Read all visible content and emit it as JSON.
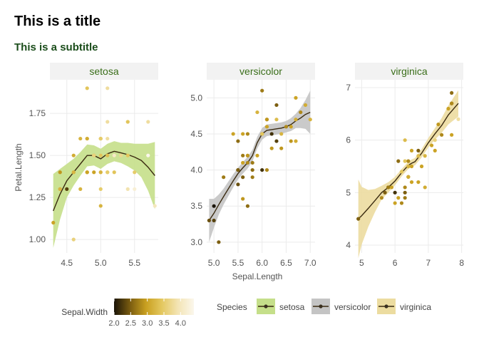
{
  "title": "This is a title",
  "subtitle": "This is a subtitle",
  "chart_data": {
    "type": "scatter",
    "xlabel": "Sepal.Length",
    "ylabel": "Petal.Length",
    "facet_strip_color": "#f2f2f2",
    "facet_text_color": "#3a6e1a",
    "facets": [
      {
        "name": "setosa",
        "xlim": [
          4.25,
          5.85
        ],
        "ylim": [
          0.92,
          1.95
        ],
        "xticks": [
          4.5,
          5.0,
          5.5
        ],
        "xtick_labels": [
          "4.5",
          "5.0",
          "5.5"
        ],
        "yticks": [
          1.0,
          1.25,
          1.5,
          1.75
        ],
        "ytick_labels": [
          "1.00",
          "1.25",
          "1.50",
          "1.75"
        ],
        "band_color": "#c5df8a",
        "points": [
          [
            4.3,
            1.1,
            3.0
          ],
          [
            4.4,
            1.4,
            2.9
          ],
          [
            4.4,
            1.3,
            3.0
          ],
          [
            4.4,
            1.3,
            3.2
          ],
          [
            4.5,
            1.3,
            2.3
          ],
          [
            4.6,
            1.4,
            3.4
          ],
          [
            4.6,
            1.5,
            3.1
          ],
          [
            4.6,
            1.0,
            3.6
          ],
          [
            4.6,
            1.4,
            3.2
          ],
          [
            4.7,
            1.3,
            3.2
          ],
          [
            4.7,
            1.6,
            3.2
          ],
          [
            4.8,
            1.6,
            3.4
          ],
          [
            4.8,
            1.4,
            3.0
          ],
          [
            4.8,
            1.6,
            3.1
          ],
          [
            4.8,
            1.9,
            3.4
          ],
          [
            4.8,
            1.4,
            3.0
          ],
          [
            4.9,
            1.4,
            3.0
          ],
          [
            4.9,
            1.5,
            3.1
          ],
          [
            4.9,
            1.5,
            3.6
          ],
          [
            5.0,
            1.4,
            3.6
          ],
          [
            5.0,
            1.5,
            3.4
          ],
          [
            5.0,
            1.6,
            3.0
          ],
          [
            5.0,
            1.6,
            3.4
          ],
          [
            5.0,
            1.4,
            3.2
          ],
          [
            5.0,
            1.6,
            3.5
          ],
          [
            5.0,
            1.3,
            3.5
          ],
          [
            5.0,
            1.2,
            3.2
          ],
          [
            5.1,
            1.4,
            3.5
          ],
          [
            5.1,
            1.5,
            3.7
          ],
          [
            5.1,
            1.4,
            3.5
          ],
          [
            5.1,
            1.7,
            3.8
          ],
          [
            5.1,
            1.5,
            3.3
          ],
          [
            5.1,
            1.9,
            3.8
          ],
          [
            5.1,
            1.6,
            3.8
          ],
          [
            5.2,
            1.5,
            3.5
          ],
          [
            5.2,
            1.4,
            3.4
          ],
          [
            5.2,
            1.5,
            4.1
          ],
          [
            5.3,
            1.5,
            3.7
          ],
          [
            5.4,
            1.7,
            3.9
          ],
          [
            5.4,
            1.5,
            3.7
          ],
          [
            5.4,
            1.7,
            3.4
          ],
          [
            5.4,
            1.3,
            3.9
          ],
          [
            5.4,
            1.5,
            3.4
          ],
          [
            5.5,
            1.4,
            3.5
          ],
          [
            5.5,
            1.3,
            4.2
          ],
          [
            5.7,
            1.5,
            4.4
          ],
          [
            5.7,
            1.7,
            3.8
          ],
          [
            5.8,
            1.2,
            4.0
          ]
        ],
        "smooth": [
          [
            4.3,
            1.17
          ],
          [
            4.4,
            1.27
          ],
          [
            4.5,
            1.35
          ],
          [
            4.6,
            1.4
          ],
          [
            4.7,
            1.45
          ],
          [
            4.8,
            1.5
          ],
          [
            4.9,
            1.5
          ],
          [
            5.0,
            1.48
          ],
          [
            5.1,
            1.51
          ],
          [
            5.2,
            1.525
          ],
          [
            5.3,
            1.515
          ],
          [
            5.4,
            1.505
          ],
          [
            5.5,
            1.49
          ],
          [
            5.6,
            1.47
          ],
          [
            5.7,
            1.43
          ],
          [
            5.8,
            1.38
          ]
        ],
        "band_halfwidth": [
          0.22,
          0.15,
          0.1,
          0.08,
          0.07,
          0.065,
          0.06,
          0.06,
          0.06,
          0.06,
          0.06,
          0.07,
          0.08,
          0.1,
          0.14,
          0.2
        ]
      },
      {
        "name": "versicolor",
        "xlim": [
          4.85,
          7.1
        ],
        "ylim": [
          2.85,
          5.25
        ],
        "xticks": [
          5.0,
          5.5,
          6.0,
          6.5,
          7.0
        ],
        "xtick_labels": [
          "5.0",
          "5.5",
          "6.0",
          "6.5",
          "7.0"
        ],
        "yticks": [
          3.0,
          3.5,
          4.0,
          4.5,
          5.0
        ],
        "ytick_labels": [
          "3.0",
          "3.5",
          "4.0",
          "4.5",
          "5.0"
        ],
        "band_color": "#c4c4c4",
        "points": [
          [
            4.9,
            3.3,
            2.4
          ],
          [
            5.0,
            3.5,
            2.0
          ],
          [
            5.0,
            3.3,
            2.3
          ],
          [
            5.1,
            3.0,
            2.5
          ],
          [
            5.2,
            3.9,
            2.7
          ],
          [
            5.4,
            4.5,
            3.0
          ],
          [
            5.5,
            4.0,
            2.3
          ],
          [
            5.5,
            3.8,
            2.4
          ],
          [
            5.5,
            4.4,
            2.6
          ],
          [
            5.5,
            4.0,
            2.5
          ],
          [
            5.6,
            3.6,
            2.9
          ],
          [
            5.6,
            4.5,
            3.0
          ],
          [
            5.6,
            4.1,
            3.0
          ],
          [
            5.6,
            3.9,
            2.5
          ],
          [
            5.6,
            4.2,
            2.7
          ],
          [
            5.7,
            4.5,
            2.8
          ],
          [
            5.7,
            3.5,
            2.6
          ],
          [
            5.7,
            4.2,
            3.0
          ],
          [
            5.7,
            4.2,
            2.9
          ],
          [
            5.7,
            4.1,
            2.8
          ],
          [
            5.8,
            4.1,
            2.7
          ],
          [
            5.8,
            4.0,
            2.6
          ],
          [
            5.8,
            3.9,
            2.7
          ],
          [
            5.9,
            4.8,
            3.2
          ],
          [
            5.9,
            4.2,
            3.0
          ],
          [
            6.0,
            4.0,
            2.2
          ],
          [
            6.0,
            5.1,
            2.7
          ],
          [
            6.0,
            4.5,
            2.9
          ],
          [
            6.0,
            4.5,
            3.4
          ],
          [
            6.1,
            4.0,
            2.8
          ],
          [
            6.1,
            4.7,
            2.8
          ],
          [
            6.1,
            4.7,
            2.9
          ],
          [
            6.1,
            4.6,
            3.0
          ],
          [
            6.2,
            4.5,
            2.2
          ],
          [
            6.2,
            4.3,
            2.9
          ],
          [
            6.3,
            4.9,
            2.5
          ],
          [
            6.3,
            4.7,
            3.3
          ],
          [
            6.3,
            4.4,
            2.3
          ],
          [
            6.4,
            4.5,
            3.2
          ],
          [
            6.4,
            4.3,
            2.9
          ],
          [
            6.5,
            4.6,
            2.8
          ],
          [
            6.6,
            4.6,
            3.0
          ],
          [
            6.6,
            4.4,
            2.9
          ],
          [
            6.7,
            4.4,
            3.1
          ],
          [
            6.7,
            5.0,
            3.0
          ],
          [
            6.7,
            4.7,
            3.1
          ],
          [
            6.8,
            4.8,
            2.8
          ],
          [
            6.9,
            4.9,
            3.1
          ],
          [
            7.0,
            4.7,
            3.2
          ]
        ],
        "smooth": [
          [
            4.9,
            3.3
          ],
          [
            5.0,
            3.4
          ],
          [
            5.1,
            3.52
          ],
          [
            5.2,
            3.63
          ],
          [
            5.3,
            3.74
          ],
          [
            5.4,
            3.85
          ],
          [
            5.5,
            3.95
          ],
          [
            5.6,
            4.03
          ],
          [
            5.7,
            4.1
          ],
          [
            5.8,
            4.2
          ],
          [
            5.9,
            4.38
          ],
          [
            6.0,
            4.5
          ],
          [
            6.1,
            4.55
          ],
          [
            6.2,
            4.56
          ],
          [
            6.3,
            4.57
          ],
          [
            6.4,
            4.58
          ],
          [
            6.5,
            4.6
          ],
          [
            6.6,
            4.63
          ],
          [
            6.7,
            4.68
          ],
          [
            6.8,
            4.72
          ],
          [
            6.9,
            4.77
          ],
          [
            7.0,
            4.8
          ]
        ],
        "band_halfwidth": [
          0.3,
          0.2,
          0.14,
          0.11,
          0.1,
          0.09,
          0.08,
          0.08,
          0.08,
          0.08,
          0.08,
          0.08,
          0.08,
          0.08,
          0.08,
          0.08,
          0.08,
          0.09,
          0.1,
          0.14,
          0.2,
          0.3
        ]
      },
      {
        "name": "virginica",
        "xlim": [
          4.8,
          8.05
        ],
        "ylim": [
          3.85,
          7.15
        ],
        "xticks": [
          5,
          6,
          7,
          8
        ],
        "xtick_labels": [
          "5",
          "6",
          "7",
          "8"
        ],
        "yticks": [
          4,
          5,
          6,
          7
        ],
        "ytick_labels": [
          "4",
          "5",
          "6",
          "7"
        ],
        "band_color": "#ecdca0",
        "points": [
          [
            4.9,
            4.5,
            2.5
          ],
          [
            5.6,
            4.9,
            2.8
          ],
          [
            5.7,
            5.0,
            2.5
          ],
          [
            5.8,
            5.1,
            2.7
          ],
          [
            5.8,
            5.1,
            2.8
          ],
          [
            5.8,
            5.1,
            2.7
          ],
          [
            5.9,
            5.1,
            3.0
          ],
          [
            6.0,
            5.0,
            2.2
          ],
          [
            6.0,
            4.8,
            3.0
          ],
          [
            6.1,
            5.6,
            2.6
          ],
          [
            6.1,
            4.9,
            3.0
          ],
          [
            6.2,
            4.8,
            2.8
          ],
          [
            6.2,
            5.4,
            3.4
          ],
          [
            6.3,
            6.0,
            3.3
          ],
          [
            6.3,
            5.1,
            2.8
          ],
          [
            6.3,
            5.0,
            2.5
          ],
          [
            6.3,
            5.6,
            3.4
          ],
          [
            6.3,
            4.9,
            2.7
          ],
          [
            6.4,
            5.3,
            2.7
          ],
          [
            6.4,
            5.6,
            2.8
          ],
          [
            6.4,
            5.5,
            3.2
          ],
          [
            6.4,
            5.3,
            3.1
          ],
          [
            6.5,
            5.8,
            3.0
          ],
          [
            6.5,
            5.5,
            3.0
          ],
          [
            6.5,
            5.2,
            3.0
          ],
          [
            6.7,
            5.8,
            2.5
          ],
          [
            6.7,
            5.7,
            3.3
          ],
          [
            6.7,
            5.2,
            3.0
          ],
          [
            6.8,
            5.5,
            3.0
          ],
          [
            6.9,
            5.7,
            3.2
          ],
          [
            6.9,
            5.1,
            3.1
          ],
          [
            7.1,
            5.9,
            3.0
          ],
          [
            7.2,
            6.0,
            3.6
          ],
          [
            7.2,
            5.8,
            3.0
          ],
          [
            7.3,
            6.3,
            2.9
          ],
          [
            7.4,
            6.1,
            2.8
          ],
          [
            7.6,
            6.6,
            3.0
          ],
          [
            7.7,
            6.7,
            2.6
          ],
          [
            7.7,
            6.9,
            2.6
          ],
          [
            7.7,
            6.7,
            2.8
          ],
          [
            7.7,
            6.1,
            3.0
          ],
          [
            7.9,
            6.4,
            3.8
          ]
        ],
        "smooth": [
          [
            4.9,
            4.5
          ],
          [
            5.0,
            4.56
          ],
          [
            5.2,
            4.7
          ],
          [
            5.4,
            4.85
          ],
          [
            5.6,
            5.0
          ],
          [
            5.8,
            5.1
          ],
          [
            6.0,
            5.22
          ],
          [
            6.2,
            5.38
          ],
          [
            6.4,
            5.52
          ],
          [
            6.5,
            5.56
          ],
          [
            6.6,
            5.59
          ],
          [
            6.8,
            5.75
          ],
          [
            7.0,
            5.95
          ],
          [
            7.2,
            6.12
          ],
          [
            7.4,
            6.28
          ],
          [
            7.6,
            6.48
          ],
          [
            7.9,
            6.7
          ]
        ],
        "band_halfwidth": [
          0.75,
          0.55,
          0.35,
          0.22,
          0.13,
          0.1,
          0.08,
          0.07,
          0.07,
          0.07,
          0.07,
          0.08,
          0.09,
          0.11,
          0.14,
          0.18,
          0.25
        ]
      }
    ],
    "colorbar": {
      "title": "Sepal.Width",
      "range": [
        2.0,
        4.4
      ],
      "ticks": [
        2.0,
        2.5,
        3.0,
        3.5,
        4.0
      ],
      "tick_labels": [
        "2.0",
        "2.5",
        "3.0",
        "3.5",
        "4.0"
      ],
      "colors": [
        "#1a1408",
        "#7a5c10",
        "#c9a020",
        "#e4c860",
        "#f3e4b4",
        "#fbf7ec"
      ]
    },
    "legend": {
      "title": "Species",
      "placement": "bottom",
      "entries": [
        "setosa",
        "versicolor",
        "virginica"
      ],
      "colors": [
        "#c5df8a",
        "#c4c4c4",
        "#ecdca0"
      ]
    },
    "line_color": "#3a2a10",
    "grid": true
  }
}
